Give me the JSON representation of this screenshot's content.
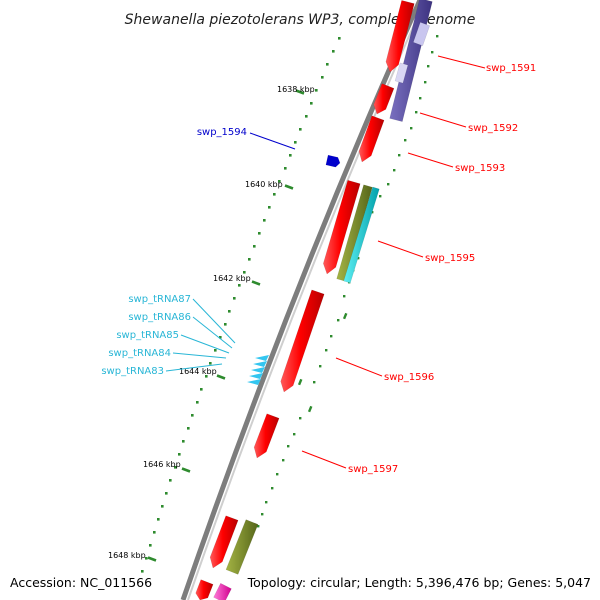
{
  "title": "Shewanella piezotolerans WP3, complete genome",
  "footer": {
    "accession": "Accession: NC_011566",
    "stats": "Topology: circular; Length: 5,396,476 bp; Genes: 5,047"
  },
  "ticks": [
    "1638 kbp",
    "1640 kbp",
    "1642 kbp",
    "1644 kbp",
    "1646 kbp",
    "1648 kbp"
  ],
  "colors": {
    "cds": "#ff0000",
    "rna_label": "#29b6d6",
    "trna": "#33c6f0",
    "selected_label": "#0000cc",
    "blast": "#5b4ea0",
    "cog_green": "#7a8c25",
    "cog_cyan": "#00c4cc",
    "backbone": "#8a8a8a",
    "tick": "#2e8b2e"
  },
  "gene_labels": [
    {
      "name": "swp_1591",
      "kind": "cds"
    },
    {
      "name": "swp_1592",
      "kind": "cds"
    },
    {
      "name": "swp_1593",
      "kind": "cds"
    },
    {
      "name": "swp_1594",
      "kind": "selected"
    },
    {
      "name": "swp_1595",
      "kind": "cds"
    },
    {
      "name": "swp_1596",
      "kind": "cds"
    },
    {
      "name": "swp_1597",
      "kind": "cds"
    },
    {
      "name": "swp_tRNA87",
      "kind": "trna"
    },
    {
      "name": "swp_tRNA86",
      "kind": "trna"
    },
    {
      "name": "swp_tRNA85",
      "kind": "trna"
    },
    {
      "name": "swp_tRNA84",
      "kind": "trna"
    },
    {
      "name": "swp_tRNA83",
      "kind": "trna"
    }
  ]
}
